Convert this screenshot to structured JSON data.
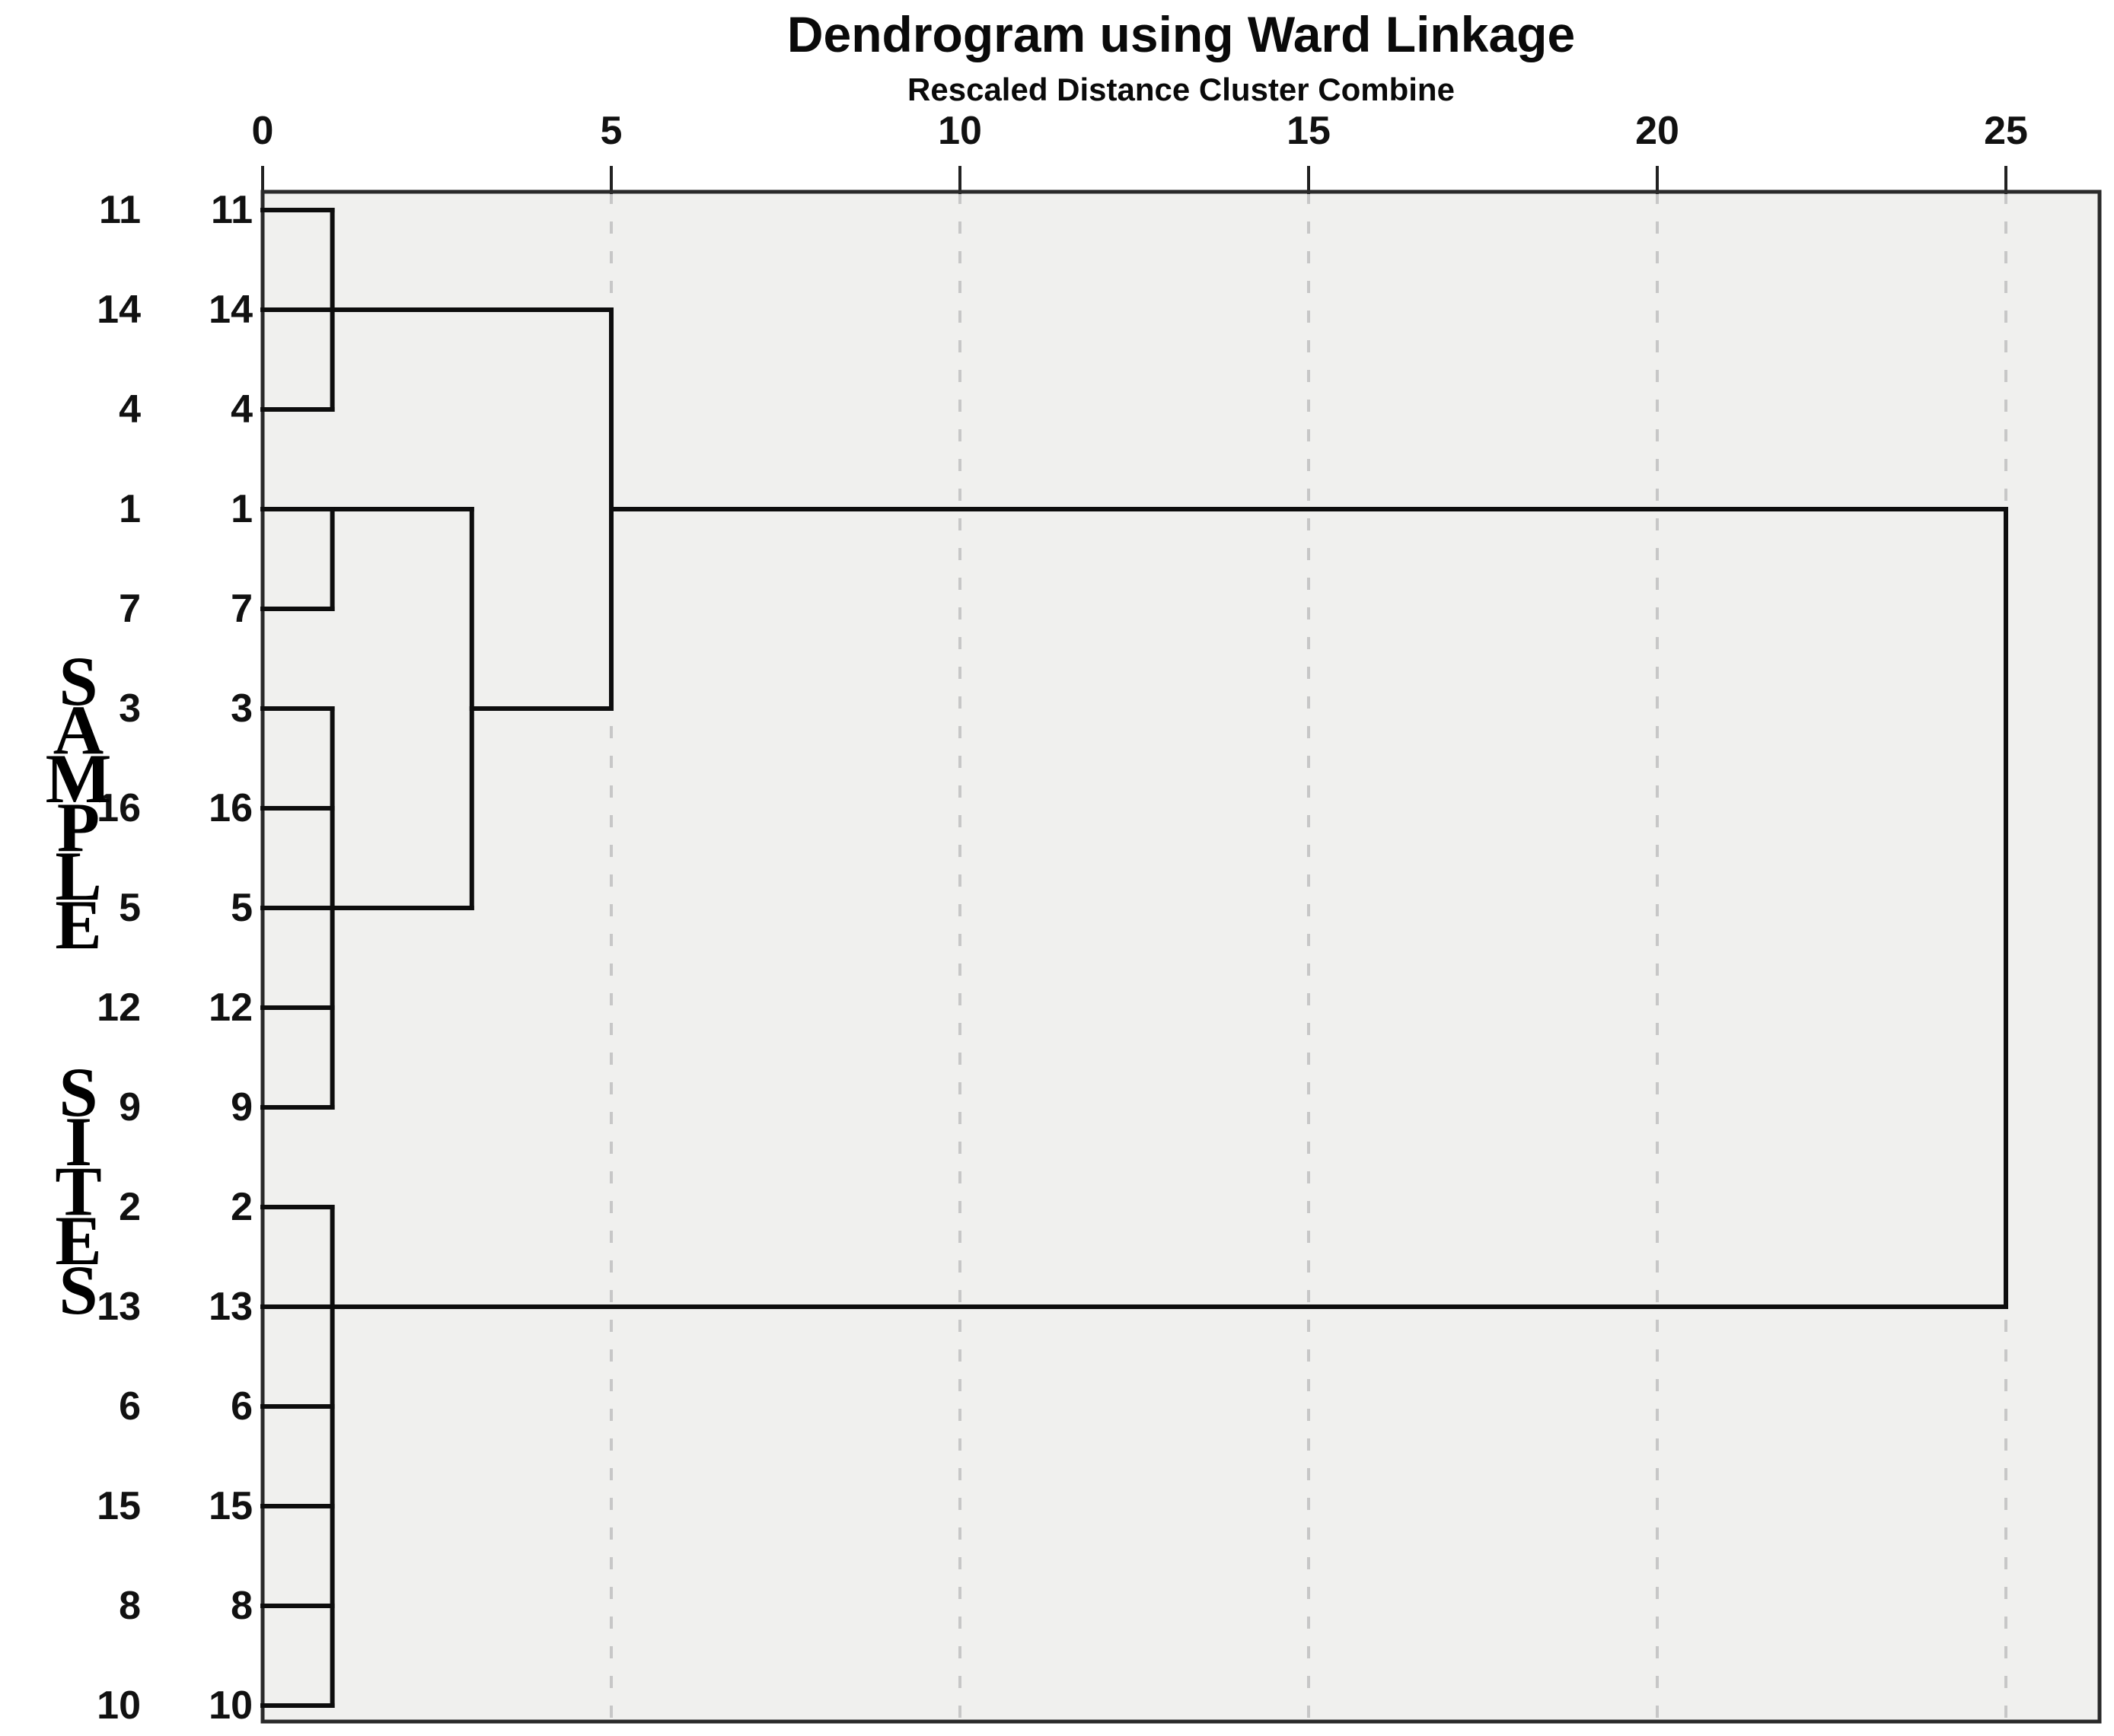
{
  "title": "Dendrogram using Ward Linkage",
  "subtitle": "Rescaled Distance Cluster Combine",
  "y_axis_title": "SAMPLE SITES",
  "x_axis": {
    "tick_labels": [
      "0",
      "5",
      "10",
      "15",
      "20",
      "25"
    ]
  },
  "chart_data": {
    "type": "dendrogram",
    "orientation": "horizontal-right",
    "title": "Dendrogram using Ward Linkage",
    "subtitle": "Rescaled Distance Cluster Combine",
    "ylabel": "SAMPLE SITES",
    "xlabel": "Rescaled Distance Cluster Combine",
    "x_range": [
      0,
      25
    ],
    "x_ticks": [
      0,
      5,
      10,
      15,
      20,
      25
    ],
    "grid": {
      "dashed_vertical_at": [
        5,
        10,
        15,
        20,
        25
      ]
    },
    "leaf_order": [
      "11",
      "14",
      "4",
      "1",
      "7",
      "3",
      "16",
      "5",
      "12",
      "9",
      "2",
      "13",
      "6",
      "15",
      "8",
      "10"
    ],
    "label_columns": 2,
    "joins": [
      {
        "members": [
          "11",
          "14",
          "4"
        ],
        "rescaled_distance": 1
      },
      {
        "members": [
          "1",
          "7"
        ],
        "rescaled_distance": 1
      },
      {
        "members": [
          "3",
          "16",
          "5",
          "12",
          "9"
        ],
        "rescaled_distance": 1
      },
      {
        "members": [
          "2",
          "13",
          "6",
          "15",
          "8",
          "10"
        ],
        "rescaled_distance": 1
      },
      {
        "members": [
          "[1,7]",
          "[3,16,5,12,9]"
        ],
        "rescaled_distance": 3
      },
      {
        "members": [
          "[11,14,4]",
          "[1,7,3,16,5,12,9]"
        ],
        "rescaled_distance": 5
      },
      {
        "members": [
          "[11,14,4,1,7,3,16,5,12,9]",
          "[2,13,6,15,8,10]"
        ],
        "rescaled_distance": 25
      }
    ],
    "segments": {
      "h_row_dfrom_dto": [
        [
          0,
          0,
          1
        ],
        [
          1,
          0,
          5
        ],
        [
          2,
          0,
          1
        ],
        [
          3,
          0,
          3
        ],
        [
          4,
          0,
          1
        ],
        [
          5,
          0,
          1
        ],
        [
          6,
          0,
          1
        ],
        [
          7,
          0,
          3
        ],
        [
          8,
          0,
          1
        ],
        [
          9,
          0,
          1
        ],
        [
          10,
          0,
          1
        ],
        [
          11,
          0,
          25
        ],
        [
          12,
          0,
          1
        ],
        [
          13,
          0,
          1
        ],
        [
          14,
          0,
          1
        ],
        [
          15,
          0,
          1
        ],
        [
          5,
          3,
          5
        ],
        [
          3,
          5,
          25
        ]
      ],
      "v_d_rowfrom_rowto": [
        [
          1,
          0,
          2
        ],
        [
          1,
          3,
          4
        ],
        [
          1,
          5,
          9
        ],
        [
          1,
          10,
          15
        ],
        [
          3,
          3,
          7
        ],
        [
          5,
          1,
          5
        ],
        [
          25,
          3,
          11
        ]
      ]
    },
    "colors": {
      "line": "#0d0d0d",
      "grid_dash": "#c7c7c7",
      "plot_background": "#f0f0ee",
      "border": "#2a2a2a",
      "text": "#000000"
    }
  }
}
